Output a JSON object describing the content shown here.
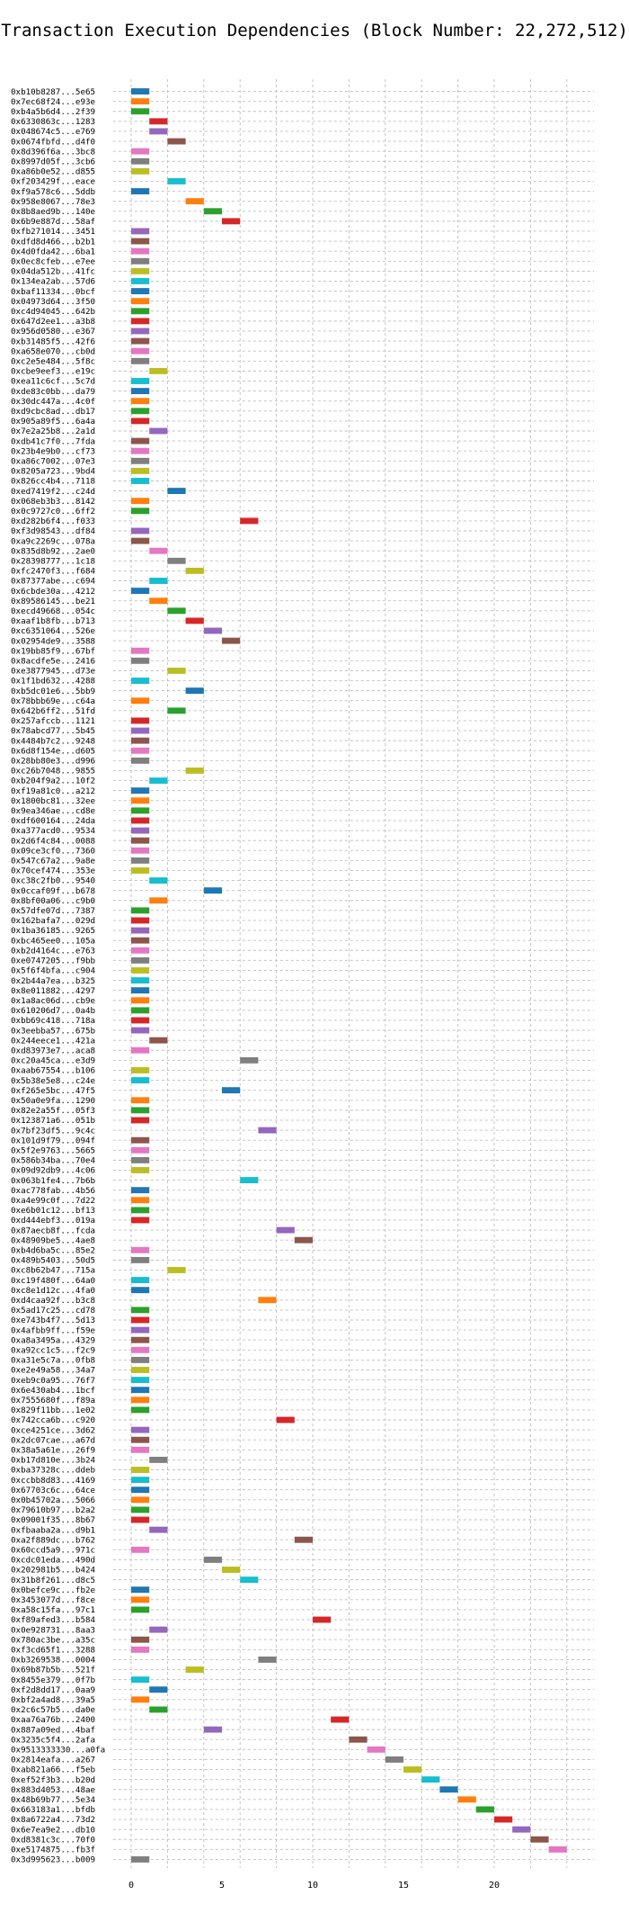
{
  "chart_data": {
    "type": "gantt",
    "title": "Transaction Execution Dependencies (Block Number: 22,272,512)",
    "xlabel": "",
    "ylabel": "",
    "xlim": [
      -1,
      25.5
    ],
    "xticks": [
      0,
      5,
      10,
      15,
      20
    ],
    "grid": {
      "x": true,
      "y": true
    },
    "legend": "none",
    "palette": [
      "#1f77b4",
      "#ff7f0e",
      "#2ca02c",
      "#d62728",
      "#9467bd",
      "#8c564b",
      "#e377c2",
      "#7f7f7f",
      "#bcbd22",
      "#17becf"
    ],
    "transactions": [
      {
        "label": "0xb10b8287...5e65",
        "start": 0,
        "end": 1
      },
      {
        "label": "0x7ec68f24...e93e",
        "start": 0,
        "end": 1
      },
      {
        "label": "0xb4a5b6d4...2f39",
        "start": 0,
        "end": 1
      },
      {
        "label": "0x6330863c...1283",
        "start": 1,
        "end": 2
      },
      {
        "label": "0x048674c5...e769",
        "start": 1,
        "end": 2
      },
      {
        "label": "0x0674fbfd...d4f0",
        "start": 2,
        "end": 3
      },
      {
        "label": "0x8d396f6a...3bc8",
        "start": 0,
        "end": 1
      },
      {
        "label": "0x8997d05f...3cb6",
        "start": 0,
        "end": 1
      },
      {
        "label": "0xa86b0e52...d855",
        "start": 0,
        "end": 1
      },
      {
        "label": "0xf203429f...eace",
        "start": 2,
        "end": 3
      },
      {
        "label": "0xf9a578c6...5ddb",
        "start": 0,
        "end": 1
      },
      {
        "label": "0x958e8067...78e3",
        "start": 3,
        "end": 4
      },
      {
        "label": "0x8b8aed9b...140e",
        "start": 4,
        "end": 5
      },
      {
        "label": "0x6b9e887d...58af",
        "start": 5,
        "end": 6
      },
      {
        "label": "0xfb271014...3451",
        "start": 0,
        "end": 1
      },
      {
        "label": "0xdfd8d466...b2b1",
        "start": 0,
        "end": 1
      },
      {
        "label": "0x4d0fda42...6ba1",
        "start": 0,
        "end": 1
      },
      {
        "label": "0x0ec8cfeb...e7ee",
        "start": 0,
        "end": 1
      },
      {
        "label": "0x04da512b...41fc",
        "start": 0,
        "end": 1
      },
      {
        "label": "0x134ea2ab...57d6",
        "start": 0,
        "end": 1
      },
      {
        "label": "0xbaf11334...0bcf",
        "start": 0,
        "end": 1
      },
      {
        "label": "0x04973d64...3f50",
        "start": 0,
        "end": 1
      },
      {
        "label": "0xc4d94045...642b",
        "start": 0,
        "end": 1
      },
      {
        "label": "0x647d2ee1...a3b8",
        "start": 0,
        "end": 1
      },
      {
        "label": "0x956d0580...e367",
        "start": 0,
        "end": 1
      },
      {
        "label": "0xb31485f5...42f6",
        "start": 0,
        "end": 1
      },
      {
        "label": "0xa658e070...cb0d",
        "start": 0,
        "end": 1
      },
      {
        "label": "0xc2e5e484...5f8c",
        "start": 0,
        "end": 1
      },
      {
        "label": "0xcbe9eef3...e19c",
        "start": 1,
        "end": 2
      },
      {
        "label": "0xea11c6cf...5c7d",
        "start": 0,
        "end": 1
      },
      {
        "label": "0xde83c0bb...da79",
        "start": 0,
        "end": 1
      },
      {
        "label": "0x30dc447a...4c0f",
        "start": 0,
        "end": 1
      },
      {
        "label": "0xd9cbc8ad...db17",
        "start": 0,
        "end": 1
      },
      {
        "label": "0x905a89f5...6a4a",
        "start": 0,
        "end": 1
      },
      {
        "label": "0x7e2a25b8...2a1d",
        "start": 1,
        "end": 2
      },
      {
        "label": "0xdb41c7f0...7fda",
        "start": 0,
        "end": 1
      },
      {
        "label": "0x23b4e9b0...cf73",
        "start": 0,
        "end": 1
      },
      {
        "label": "0xa86c7002...07e3",
        "start": 0,
        "end": 1
      },
      {
        "label": "0x8205a723...9bd4",
        "start": 0,
        "end": 1
      },
      {
        "label": "0x826cc4b4...7118",
        "start": 0,
        "end": 1
      },
      {
        "label": "0xed7419f2...c24d",
        "start": 2,
        "end": 3
      },
      {
        "label": "0x068eb3b3...8142",
        "start": 0,
        "end": 1
      },
      {
        "label": "0x0c9727c0...6ff2",
        "start": 0,
        "end": 1
      },
      {
        "label": "0xd282b6f4...f033",
        "start": 6,
        "end": 7
      },
      {
        "label": "0xf3d98543...df84",
        "start": 0,
        "end": 1
      },
      {
        "label": "0xa9c2269c...078a",
        "start": 0,
        "end": 1
      },
      {
        "label": "0x835d8b92...2ae0",
        "start": 1,
        "end": 2
      },
      {
        "label": "0x28398777...1c18",
        "start": 2,
        "end": 3
      },
      {
        "label": "0xfc2470f3...f684",
        "start": 3,
        "end": 4
      },
      {
        "label": "0x87377abe...c694",
        "start": 1,
        "end": 2
      },
      {
        "label": "0x6cbde30a...4212",
        "start": 0,
        "end": 1
      },
      {
        "label": "0x89586145...be21",
        "start": 1,
        "end": 2
      },
      {
        "label": "0xecd49668...054c",
        "start": 2,
        "end": 3
      },
      {
        "label": "0xaaf1b8fb...b713",
        "start": 3,
        "end": 4
      },
      {
        "label": "0xc6351064...526e",
        "start": 4,
        "end": 5
      },
      {
        "label": "0x02954de9...3588",
        "start": 5,
        "end": 6
      },
      {
        "label": "0x19bb85f9...67bf",
        "start": 0,
        "end": 1
      },
      {
        "label": "0x8acdfe5e...2416",
        "start": 0,
        "end": 1
      },
      {
        "label": "0xe3877945...d73e",
        "start": 2,
        "end": 3
      },
      {
        "label": "0x1f1bd632...4288",
        "start": 0,
        "end": 1
      },
      {
        "label": "0xb5dc01e6...5bb9",
        "start": 3,
        "end": 4
      },
      {
        "label": "0x78bbb69e...c64a",
        "start": 0,
        "end": 1
      },
      {
        "label": "0x642b6ff2...51fd",
        "start": 2,
        "end": 3
      },
      {
        "label": "0x257afccb...1121",
        "start": 0,
        "end": 1
      },
      {
        "label": "0x78abcd77...5b45",
        "start": 0,
        "end": 1
      },
      {
        "label": "0x4484b7c2...9248",
        "start": 0,
        "end": 1
      },
      {
        "label": "0x6d8f154e...d605",
        "start": 0,
        "end": 1
      },
      {
        "label": "0x28bb80e3...d996",
        "start": 0,
        "end": 1
      },
      {
        "label": "0xc26b7048...9855",
        "start": 3,
        "end": 4
      },
      {
        "label": "0xb204f9a2...10f2",
        "start": 1,
        "end": 2
      },
      {
        "label": "0xf19a81c0...a212",
        "start": 0,
        "end": 1
      },
      {
        "label": "0x1800bc81...32ee",
        "start": 0,
        "end": 1
      },
      {
        "label": "0x9ea346ae...cd8e",
        "start": 0,
        "end": 1
      },
      {
        "label": "0xdf600164...24da",
        "start": 0,
        "end": 1
      },
      {
        "label": "0xa377acd0...9534",
        "start": 0,
        "end": 1
      },
      {
        "label": "0x2d6f4c84...0088",
        "start": 0,
        "end": 1
      },
      {
        "label": "0x09ce3cf0...7360",
        "start": 0,
        "end": 1
      },
      {
        "label": "0x547c67a2...9a8e",
        "start": 0,
        "end": 1
      },
      {
        "label": "0x70cef474...353e",
        "start": 0,
        "end": 1
      },
      {
        "label": "0xc38c2fb0...9540",
        "start": 1,
        "end": 2
      },
      {
        "label": "0x0ccaf09f...b678",
        "start": 4,
        "end": 5
      },
      {
        "label": "0x8bf00a06...c9b0",
        "start": 1,
        "end": 2
      },
      {
        "label": "0x57dfe07d...7387",
        "start": 0,
        "end": 1
      },
      {
        "label": "0x162bafa7...029d",
        "start": 0,
        "end": 1
      },
      {
        "label": "0x1ba36185...9265",
        "start": 0,
        "end": 1
      },
      {
        "label": "0xbc465ee0...105a",
        "start": 0,
        "end": 1
      },
      {
        "label": "0xb2d4164c...e763",
        "start": 0,
        "end": 1
      },
      {
        "label": "0xe0747205...f9bb",
        "start": 0,
        "end": 1
      },
      {
        "label": "0x5f6f4bfa...c904",
        "start": 0,
        "end": 1
      },
      {
        "label": "0x2b44a7ea...b325",
        "start": 0,
        "end": 1
      },
      {
        "label": "0x8e011882...4297",
        "start": 0,
        "end": 1
      },
      {
        "label": "0x1a8ac06d...cb9e",
        "start": 0,
        "end": 1
      },
      {
        "label": "0x610206d7...0a4b",
        "start": 0,
        "end": 1
      },
      {
        "label": "0xbb69c418...718a",
        "start": 0,
        "end": 1
      },
      {
        "label": "0x3eebba57...675b",
        "start": 0,
        "end": 1
      },
      {
        "label": "0x244eece1...421a",
        "start": 1,
        "end": 2
      },
      {
        "label": "0xd83973e7...aca8",
        "start": 0,
        "end": 1
      },
      {
        "label": "0xc20a45ca...e3d9",
        "start": 6,
        "end": 7
      },
      {
        "label": "0xaab67554...b106",
        "start": 0,
        "end": 1
      },
      {
        "label": "0x5b38e5e8...c24e",
        "start": 0,
        "end": 1
      },
      {
        "label": "0xf265e5bc...47f5",
        "start": 5,
        "end": 6
      },
      {
        "label": "0x50a0e9fa...1290",
        "start": 0,
        "end": 1
      },
      {
        "label": "0x82e2a55f...05f3",
        "start": 0,
        "end": 1
      },
      {
        "label": "0x123871a6...051b",
        "start": 0,
        "end": 1
      },
      {
        "label": "0x7bf23df5...9c4c",
        "start": 7,
        "end": 8
      },
      {
        "label": "0x101d9f79...094f",
        "start": 0,
        "end": 1
      },
      {
        "label": "0x5f2e9763...5665",
        "start": 0,
        "end": 1
      },
      {
        "label": "0x586b34ba...70e4",
        "start": 0,
        "end": 1
      },
      {
        "label": "0x09d92db9...4c06",
        "start": 0,
        "end": 1
      },
      {
        "label": "0x063b1fe4...7b6b",
        "start": 6,
        "end": 7
      },
      {
        "label": "0xac778fab...4b56",
        "start": 0,
        "end": 1
      },
      {
        "label": "0xa4e99c0f...7d22",
        "start": 0,
        "end": 1
      },
      {
        "label": "0xe6b01c12...bf13",
        "start": 0,
        "end": 1
      },
      {
        "label": "0xd444ebf3...019a",
        "start": 0,
        "end": 1
      },
      {
        "label": "0x87aecb8f...fcda",
        "start": 8,
        "end": 9
      },
      {
        "label": "0x48909be5...4ae8",
        "start": 9,
        "end": 10
      },
      {
        "label": "0xb4d6ba5c...85e2",
        "start": 0,
        "end": 1
      },
      {
        "label": "0x489b5403...50d5",
        "start": 0,
        "end": 1
      },
      {
        "label": "0xc8b62b47...715a",
        "start": 2,
        "end": 3
      },
      {
        "label": "0xc19f480f...64a0",
        "start": 0,
        "end": 1
      },
      {
        "label": "0xc8e1d12c...4fa0",
        "start": 0,
        "end": 1
      },
      {
        "label": "0xd4caa92f...b3c8",
        "start": 7,
        "end": 8
      },
      {
        "label": "0x5ad17c25...cd78",
        "start": 0,
        "end": 1
      },
      {
        "label": "0xe743b4f7...5d13",
        "start": 0,
        "end": 1
      },
      {
        "label": "0x4afbb9ff...f59e",
        "start": 0,
        "end": 1
      },
      {
        "label": "0xa8a3495a...4329",
        "start": 0,
        "end": 1
      },
      {
        "label": "0xa92cc1c5...f2c9",
        "start": 0,
        "end": 1
      },
      {
        "label": "0xa31e5c7a...0fb8",
        "start": 0,
        "end": 1
      },
      {
        "label": "0xe2e49a58...34a7",
        "start": 0,
        "end": 1
      },
      {
        "label": "0xeb9c0a95...76f7",
        "start": 0,
        "end": 1
      },
      {
        "label": "0x6e430ab4...1bcf",
        "start": 0,
        "end": 1
      },
      {
        "label": "0x7555680f...f89a",
        "start": 0,
        "end": 1
      },
      {
        "label": "0x829f11bb...1e02",
        "start": 0,
        "end": 1
      },
      {
        "label": "0x742cca6b...c920",
        "start": 8,
        "end": 9
      },
      {
        "label": "0xce4251ce...3d62",
        "start": 0,
        "end": 1
      },
      {
        "label": "0x2dc07cae...a67d",
        "start": 0,
        "end": 1
      },
      {
        "label": "0x38a5a61e...26f9",
        "start": 0,
        "end": 1
      },
      {
        "label": "0xb17d810e...3b24",
        "start": 1,
        "end": 2
      },
      {
        "label": "0xba37328c...ddeb",
        "start": 0,
        "end": 1
      },
      {
        "label": "0xccbb8d83...4169",
        "start": 0,
        "end": 1
      },
      {
        "label": "0x67703c6c...64ce",
        "start": 0,
        "end": 1
      },
      {
        "label": "0x0b45702a...5066",
        "start": 0,
        "end": 1
      },
      {
        "label": "0x79610b97...b2a2",
        "start": 0,
        "end": 1
      },
      {
        "label": "0x09001f35...8b67",
        "start": 0,
        "end": 1
      },
      {
        "label": "0xfbaaba2a...d9b1",
        "start": 1,
        "end": 2
      },
      {
        "label": "0xa2f889dc...b762",
        "start": 9,
        "end": 10
      },
      {
        "label": "0x60ccd5a9...971c",
        "start": 0,
        "end": 1
      },
      {
        "label": "0xcdc01eda...490d",
        "start": 4,
        "end": 5
      },
      {
        "label": "0x202981b5...b424",
        "start": 5,
        "end": 6
      },
      {
        "label": "0x31b8f261...d8c5",
        "start": 6,
        "end": 7
      },
      {
        "label": "0x0befce9c...fb2e",
        "start": 0,
        "end": 1
      },
      {
        "label": "0x3453077d...f8ce",
        "start": 0,
        "end": 1
      },
      {
        "label": "0xa58c15fa...97c1",
        "start": 0,
        "end": 1
      },
      {
        "label": "0xf89afed3...b584",
        "start": 10,
        "end": 11
      },
      {
        "label": "0x0e928731...8aa3",
        "start": 1,
        "end": 2
      },
      {
        "label": "0x780ac3be...a35c",
        "start": 0,
        "end": 1
      },
      {
        "label": "0xf3cd65f1...3288",
        "start": 0,
        "end": 1
      },
      {
        "label": "0xb3269538...0004",
        "start": 7,
        "end": 8
      },
      {
        "label": "0x69b87b5b...521f",
        "start": 3,
        "end": 4
      },
      {
        "label": "0x8455e379...0f7b",
        "start": 0,
        "end": 1
      },
      {
        "label": "0xf2d8dd17...0aa9",
        "start": 1,
        "end": 2
      },
      {
        "label": "0xbf2a4ad8...39a5",
        "start": 0,
        "end": 1
      },
      {
        "label": "0x2c6c57b5...da0e",
        "start": 1,
        "end": 2
      },
      {
        "label": "0xaa76a76b...2400",
        "start": 11,
        "end": 12
      },
      {
        "label": "0x887a09ed...4baf",
        "start": 4,
        "end": 5
      },
      {
        "label": "0x3235c5f4...2afa",
        "start": 12,
        "end": 13
      },
      {
        "label": "0x9513333330...a0fa",
        "start": 13,
        "end": 14
      },
      {
        "label": "0x2814eafa...a267",
        "start": 14,
        "end": 15
      },
      {
        "label": "0xab821a66...f5eb",
        "start": 15,
        "end": 16
      },
      {
        "label": "0xef52f3b3...b20d",
        "start": 16,
        "end": 17
      },
      {
        "label": "0x883d4053...48ae",
        "start": 17,
        "end": 18
      },
      {
        "label": "0x48b69b77...5e34",
        "start": 18,
        "end": 19
      },
      {
        "label": "0x663183a1...bfdb",
        "start": 19,
        "end": 20
      },
      {
        "label": "0x8a6722a4...73d2",
        "start": 20,
        "end": 21
      },
      {
        "label": "0x6e7ea9e2...db10",
        "start": 21,
        "end": 22
      },
      {
        "label": "0xd8381c3c...70f0",
        "start": 22,
        "end": 23
      },
      {
        "label": "0xe5174875...fb3f",
        "start": 23,
        "end": 24
      },
      {
        "label": "0x3d995623...b009",
        "start": 0,
        "end": 1
      }
    ]
  }
}
